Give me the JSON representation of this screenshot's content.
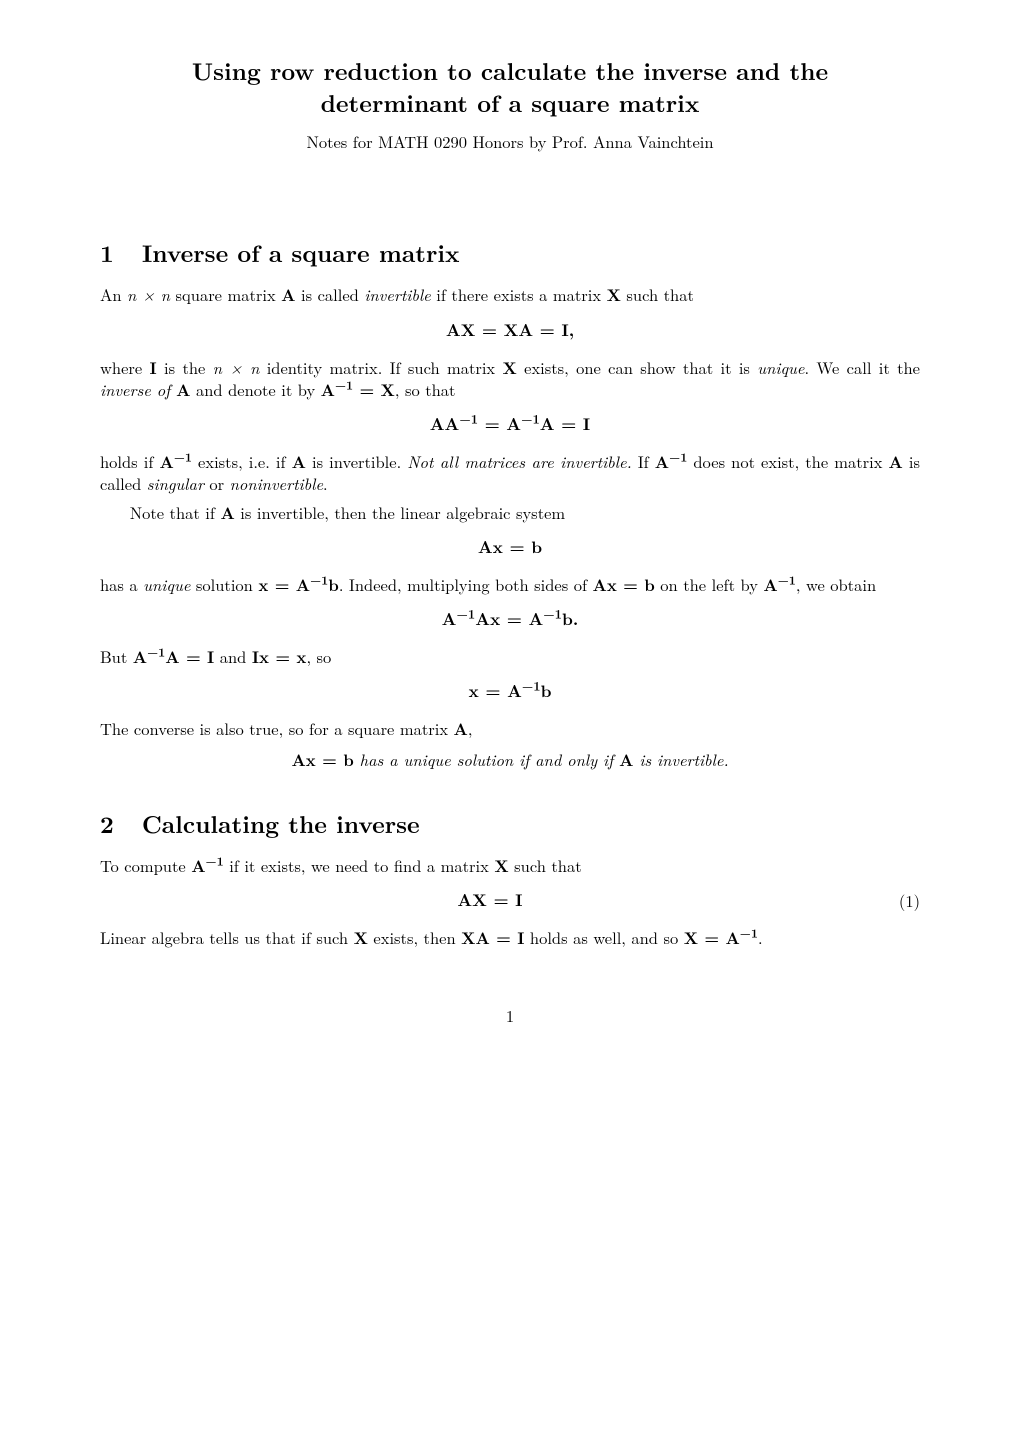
{
  "page": {
    "title_line1": "Using row reduction to calculate the inverse and the",
    "title_line2": "determinant of a square matrix",
    "note": "Notes for MATH 0290 Honors by Prof. Anna Vainchtein",
    "page_number": "1",
    "background_color": "#ffffff",
    "text_color": "#000000",
    "title_fontsize": 24,
    "section_fontsize": 24,
    "body_fontsize": 16.5
  },
  "sections": {
    "s1": {
      "num": "1",
      "title": "Inverse of a square matrix"
    },
    "s2": {
      "num": "2",
      "title": "Calculating the inverse"
    }
  },
  "body": {
    "p1a": "An ",
    "p1_nxn": "n × n",
    "p1b": " square matrix ",
    "p1_A": "A",
    "p1c": " is called ",
    "p1_inv": "invertible",
    "p1d": " if there exists a matrix ",
    "p1_X": "X",
    "p1e": " such that",
    "eq1": "AX = XA = I,",
    "p2a": "where ",
    "p2_I": "I",
    "p2b": " is the ",
    "p2c": " identity matrix. If such matrix ",
    "p2d": " exists, one can show that it is ",
    "p2_unique": "unique",
    "p2e": ". We call it the ",
    "p2_invof": "inverse of ",
    "p2f": " and denote it by ",
    "p2_AinveqX_A": "A",
    "p2_AinveqX_exp": "−1",
    "p2_AinveqX_eq": " = X",
    "p2g": ", so that",
    "eq2_lhs_AA": "AA",
    "eq2_lhs_exp": "−1",
    "eq2_mid": " = A",
    "eq2_mid_exp": "−1",
    "eq2_rhs": "A = I",
    "p3a": "holds if ",
    "p3b": " exists, i.e. if ",
    "p3c": " is invertible. ",
    "p3_notall": "Not all matrices are invertible.",
    "p3d": " If ",
    "p3e": " does not exist, the matrix ",
    "p3f": " is called ",
    "p3_sing": "singular",
    "p3g": " or ",
    "p3_noninv": "noninvertible",
    "p3h": ".",
    "p4a": "Note that if ",
    "p4b": " is invertible, then the linear algebraic system",
    "eq3": "Ax = b",
    "p5a": "has a ",
    "p5_unique": "unique",
    "p5b": " solution ",
    "p5_xeq_x": "x = A",
    "p5_xeq_exp": "−1",
    "p5_xeq_b": "b",
    "p5c": ". Indeed, multiplying both sides of ",
    "p5_Axb": "Ax = b",
    "p5d": " on the left by ",
    "p5_Ainv_A": "A",
    "p5_Ainv_exp": "−1",
    "p5e": ", we obtain",
    "eq4_l_A": "A",
    "eq4_l_exp": "−1",
    "eq4_l_Ax": "Ax = A",
    "eq4_r_exp": "−1",
    "eq4_r_b": "b.",
    "p6a": "But ",
    "p6_AinvA_A": "A",
    "p6_AinvA_exp": "−1",
    "p6_AinvA_rest": "A = I",
    "p6b": " and ",
    "p6_Ixeqx": "Ix = x",
    "p6c": ", so",
    "eq5_x": "x = A",
    "eq5_exp": "−1",
    "eq5_b": "b",
    "p7a": "The converse is also true, so for a square matrix ",
    "p7b": ",",
    "stmt_Axb": "Ax = b",
    "stmt_mid": " has a unique solution if and only if ",
    "stmt_A": "A",
    "stmt_end": " is invertible.",
    "p8a": "To compute ",
    "p8b": " if it exists, we need to find a matrix ",
    "p8c": " such that",
    "eq6": "AX = I",
    "eq6_num": "(1)",
    "p9a": "Linear algebra tells us that if such ",
    "p9b": " exists, then ",
    "p9_XAeqI": "XA = I",
    "p9c": " holds as well, and so ",
    "p9_XeqAinv_X": "X = A",
    "p9_XeqAinv_exp": "−1",
    "p9d": "."
  }
}
